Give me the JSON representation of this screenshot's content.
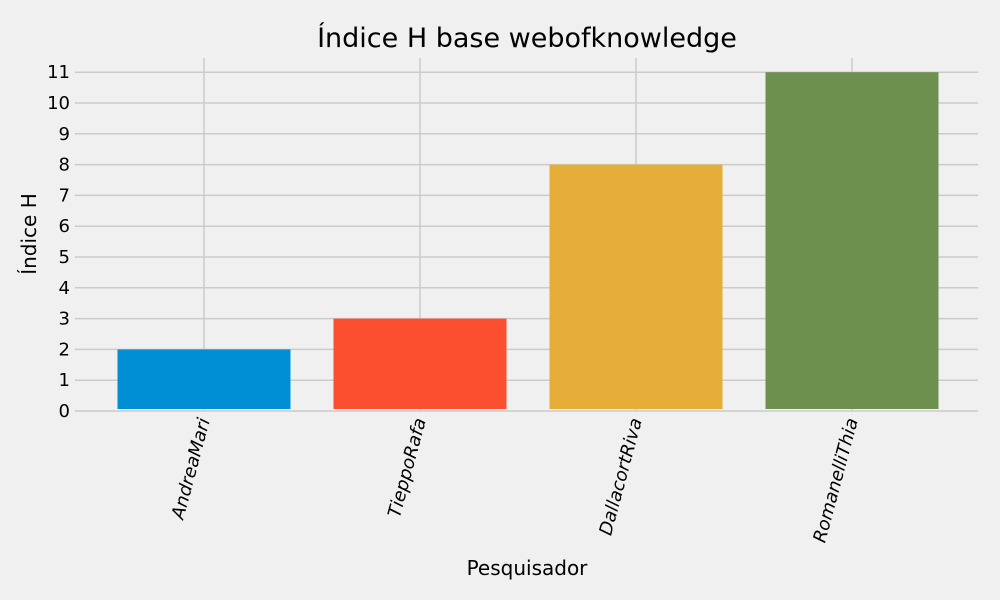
{
  "chart_data": {
    "type": "bar",
    "title": "Índice H base webofknowledge",
    "xlabel": "Pesquisador",
    "ylabel": "Índice H",
    "categories": [
      "AndreaMari",
      "TieppoRafa",
      "DallacortRiva",
      "RomanelliThia"
    ],
    "values": [
      2,
      3,
      8,
      11
    ],
    "colors": [
      "#008fd5",
      "#fc4f30",
      "#e5ae38",
      "#6d904f"
    ],
    "yticks": [
      0,
      1,
      2,
      3,
      4,
      5,
      6,
      7,
      8,
      9,
      10,
      11
    ],
    "ylim": [
      0,
      11.5
    ],
    "grid": true,
    "background": "#f0f0f0",
    "category_label_rotation_deg": 75
  }
}
